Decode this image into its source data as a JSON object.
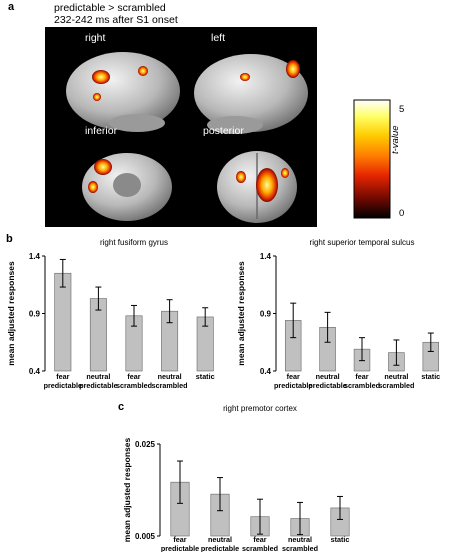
{
  "panel_a": {
    "letter": "a",
    "contrast": "predictable > scrambled",
    "window": "232-242 ms after S1 onset",
    "views": [
      "right",
      "left",
      "inferior",
      "posterior"
    ],
    "colorbar": {
      "label": "t-value",
      "max_label": "5",
      "min_label": "0",
      "colors": [
        "#ffffff",
        "#ffff66",
        "#ffcc00",
        "#ff7a00",
        "#e52600",
        "#7a0a00",
        "#000000"
      ]
    }
  },
  "panel_b_letter": "b",
  "panel_c_letter": "c",
  "shared_ylabel": "mean adjusted responses",
  "chart_data": [
    {
      "type": "bar",
      "title": "right fusiform gyrus",
      "ylabel": "mean adjusted responses",
      "categories": [
        "fear\npredictable",
        "neutral\npredictable",
        "fear\nscrambled",
        "neutral\nscrambled",
        "static"
      ],
      "values": [
        1.25,
        1.03,
        0.88,
        0.92,
        0.87
      ],
      "errors": [
        0.12,
        0.1,
        0.09,
        0.1,
        0.08
      ],
      "ylim": [
        0.4,
        1.4
      ],
      "yticks": [
        "1.4",
        "0.9",
        "0.4"
      ],
      "bar_color": "#c0c0c0"
    },
    {
      "type": "bar",
      "title": "right superior temporal sulcus",
      "ylabel": "mean adjusted responses",
      "categories": [
        "fear\npredictable",
        "neutral\npredictable",
        "fear\nscrambled",
        "neutral\nscrambled",
        "static"
      ],
      "values": [
        0.84,
        0.78,
        0.59,
        0.56,
        0.65
      ],
      "errors": [
        0.15,
        0.13,
        0.1,
        0.11,
        0.08
      ],
      "ylim": [
        0.4,
        1.4
      ],
      "yticks": [
        "1.4",
        "0.9",
        "0.4"
      ],
      "bar_color": "#c0c0c0"
    },
    {
      "type": "bar",
      "title": "right premotor cortex",
      "ylabel": "mean adjusted responses",
      "categories": [
        "fear\npredictable",
        "neutral\npredictable",
        "fear\nscrambled",
        "neutral\nscrambled",
        "static"
      ],
      "values": [
        0.0167,
        0.0141,
        0.0092,
        0.0088,
        0.0111
      ],
      "errors": [
        0.0046,
        0.0036,
        0.0038,
        0.0035,
        0.0025
      ],
      "ylim": [
        0.005,
        0.025
      ],
      "yticks": [
        "0.025",
        "0.005"
      ],
      "bar_color": "#c0c0c0"
    }
  ]
}
